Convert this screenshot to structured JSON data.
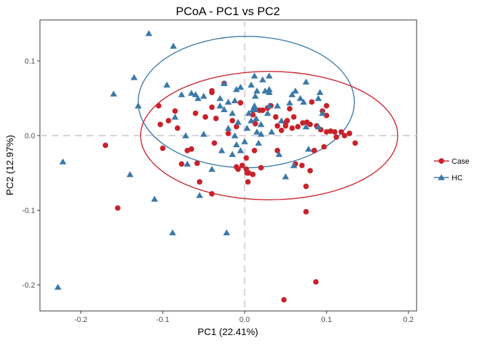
{
  "chart_data": {
    "type": "scatter",
    "title": "PCoA - PC1 vs PC2",
    "xlabel": "PC1  (22.41%)",
    "ylabel": "PC2  (12.97%)",
    "xlim": [
      -0.25,
      0.21
    ],
    "ylim": [
      -0.235,
      0.155
    ],
    "xticks": [
      -0.2,
      -0.1,
      0.0,
      0.1,
      0.2
    ],
    "xtick_labels": [
      "-0.2",
      "-0.1",
      "0.0",
      "0.1",
      "0.2"
    ],
    "yticks": [
      -0.2,
      -0.1,
      0.0,
      0.1
    ],
    "ytick_labels": [
      "-0.2",
      "-0.1",
      "0.0",
      "0.1"
    ],
    "grid": false,
    "reference_lines": {
      "x": 0,
      "y": 0,
      "style": "dashed",
      "color": "#d6d0dc"
    },
    "legend_position": "right",
    "series": [
      {
        "name": "Case",
        "marker": "circle",
        "color": "#c8222b",
        "points": [
          [
            -0.17,
            -0.013
          ],
          [
            -0.155,
            -0.097
          ],
          [
            -0.105,
            0.04
          ],
          [
            -0.103,
            0.015
          ],
          [
            -0.1,
            -0.017
          ],
          [
            -0.093,
            0.02
          ],
          [
            -0.085,
            0.033
          ],
          [
            -0.082,
            0.01
          ],
          [
            -0.077,
            -0.038
          ],
          [
            -0.07,
            -0.02
          ],
          [
            -0.065,
            -0.018
          ],
          [
            -0.06,
            0.03
          ],
          [
            -0.058,
            -0.037
          ],
          [
            -0.055,
            -0.062
          ],
          [
            -0.04,
            0.058
          ],
          [
            -0.037,
            -0.01
          ],
          [
            -0.04,
            0.06
          ],
          [
            -0.02,
            0.003
          ],
          [
            -0.04,
            0.038
          ],
          [
            -0.048,
            0.025
          ],
          [
            -0.035,
            0.023
          ],
          [
            -0.025,
            0.07
          ],
          [
            -0.015,
            0.02
          ],
          [
            -0.005,
            0.044
          ],
          [
            -0.01,
            0.012
          ],
          [
            -0.04,
            -0.078
          ],
          [
            -0.003,
            -0.04
          ],
          [
            -0.008,
            -0.045
          ],
          [
            0.002,
            -0.045
          ],
          [
            0.005,
            -0.05
          ],
          [
            0.003,
            -0.05
          ],
          [
            0.002,
            -0.03
          ],
          [
            -0.01,
            -0.042
          ],
          [
            0.004,
            -0.062
          ],
          [
            0.01,
            -0.052
          ],
          [
            0.012,
            -0.02
          ],
          [
            0.02,
            -0.043
          ],
          [
            0.01,
            0.028
          ],
          [
            0.013,
            0.016
          ],
          [
            0.018,
            0.034
          ],
          [
            0.022,
            0.034
          ],
          [
            0.028,
            0.037
          ],
          [
            0.032,
            0.04
          ],
          [
            0.038,
            0.025
          ],
          [
            0.04,
            -0.02
          ],
          [
            0.045,
            0.007
          ],
          [
            0.05,
            0.017
          ],
          [
            0.052,
            0.02
          ],
          [
            0.055,
            0.036
          ],
          [
            0.058,
            0.01
          ],
          [
            0.04,
            0.013
          ],
          [
            0.05,
            0.013
          ],
          [
            0.06,
            0.025
          ],
          [
            0.062,
            -0.038
          ],
          [
            0.065,
            0.012
          ],
          [
            0.07,
            -0.04
          ],
          [
            0.071,
            0.017
          ],
          [
            0.075,
            -0.068
          ],
          [
            0.076,
            0.018
          ],
          [
            0.08,
            0.015
          ],
          [
            0.08,
            -0.047
          ],
          [
            0.085,
            -0.02
          ],
          [
            0.082,
            0.045
          ],
          [
            0.088,
            0.013
          ],
          [
            0.093,
            0.008
          ],
          [
            0.095,
            0.033
          ],
          [
            0.097,
            -0.015
          ],
          [
            0.1,
            0.027
          ],
          [
            0.1,
            0.005
          ],
          [
            0.105,
            0.006
          ],
          [
            0.11,
            0.005
          ],
          [
            0.112,
            -0.002
          ],
          [
            0.118,
            0.005
          ],
          [
            0.122,
            0.0
          ],
          [
            0.128,
            0.003
          ],
          [
            0.135,
            -0.01
          ],
          [
            0.1,
            0.04
          ],
          [
            0.075,
            -0.102
          ],
          [
            0.087,
            -0.196
          ],
          [
            0.048,
            -0.22
          ]
        ]
      },
      {
        "name": "HC",
        "marker": "triangle",
        "color": "#3b79a8",
        "points": [
          [
            -0.117,
            0.137
          ],
          [
            -0.087,
            0.12
          ],
          [
            -0.13,
            0.04
          ],
          [
            -0.135,
            0.078
          ],
          [
            -0.16,
            0.056
          ],
          [
            -0.222,
            -0.035
          ],
          [
            -0.228,
            -0.203
          ],
          [
            -0.14,
            -0.052
          ],
          [
            -0.11,
            -0.085
          ],
          [
            -0.088,
            -0.13
          ],
          [
            -0.095,
            0.068
          ],
          [
            -0.077,
            0.055
          ],
          [
            -0.065,
            0.057
          ],
          [
            -0.06,
            0.055
          ],
          [
            -0.057,
            0.05
          ],
          [
            -0.085,
            0.025
          ],
          [
            -0.072,
            0.0
          ],
          [
            -0.05,
            0.002
          ],
          [
            -0.028,
            -0.02
          ],
          [
            -0.015,
            -0.025
          ],
          [
            -0.005,
            -0.02
          ],
          [
            -0.04,
            -0.045
          ],
          [
            -0.022,
            -0.13
          ],
          [
            -0.055,
            -0.08
          ],
          [
            -0.07,
            -0.038
          ],
          [
            -0.03,
            0.05
          ],
          [
            -0.02,
            0.045
          ],
          [
            -0.012,
            0.047
          ],
          [
            -0.03,
            0.04
          ],
          [
            -0.025,
            0.035
          ],
          [
            -0.015,
            0.03
          ],
          [
            -0.008,
            0.018
          ],
          [
            -0.02,
            0.01
          ],
          [
            -0.012,
            0.0
          ],
          [
            -0.01,
            -0.012
          ],
          [
            0.0,
            -0.008
          ],
          [
            0.005,
            0.03
          ],
          [
            0.008,
            0.02
          ],
          [
            0.014,
            0.023
          ],
          [
            0.01,
            0.035
          ],
          [
            0.012,
            0.04
          ],
          [
            0.015,
            0.005
          ],
          [
            0.017,
            -0.01
          ],
          [
            0.02,
            0.015
          ],
          [
            0.02,
            0.002
          ],
          [
            0.028,
            0.03
          ],
          [
            0.03,
            0.04
          ],
          [
            0.033,
            0.005
          ],
          [
            0.03,
            0.058
          ],
          [
            0.013,
            0.053
          ],
          [
            0.008,
            0.068
          ],
          [
            0.022,
            0.075
          ],
          [
            0.03,
            0.062
          ],
          [
            0.04,
            0.04
          ],
          [
            0.045,
            0.02
          ],
          [
            0.042,
            -0.025
          ],
          [
            0.05,
            -0.055
          ],
          [
            0.055,
            0.044
          ],
          [
            0.06,
            -0.04
          ],
          [
            0.075,
            0.012
          ],
          [
            0.078,
            -0.018
          ],
          [
            0.09,
            0.012
          ],
          [
            0.095,
            0.03
          ],
          [
            0.09,
            0.05
          ],
          [
            0.092,
            0.058
          ],
          [
            0.075,
            0.072
          ],
          [
            0.062,
            0.06
          ],
          [
            0.03,
            0.08
          ],
          [
            -0.01,
            0.062
          ],
          [
            -0.025,
            0.07
          ],
          [
            -0.005,
            0.065
          ],
          [
            0.012,
            0.08
          ],
          [
            -0.05,
            0.053
          ],
          [
            0.058,
            0.055
          ],
          [
            0.072,
            0.045
          ],
          [
            0.068,
            0.05
          ],
          [
            0.003,
            0.01
          ],
          [
            0.025,
            0.06
          ],
          [
            0.015,
            0.06
          ],
          [
            0.013,
            0.035
          ]
        ]
      }
    ],
    "ellipses": [
      {
        "series": "HC",
        "color": "#3b79a8",
        "center": [
          0.002,
          0.045
        ],
        "semi_axes": [
          0.132,
          0.088
        ]
      },
      {
        "series": "Case",
        "color": "#c8222b",
        "center": [
          0.03,
          0.0
        ],
        "semi_axes": [
          0.157,
          0.086
        ]
      }
    ]
  }
}
